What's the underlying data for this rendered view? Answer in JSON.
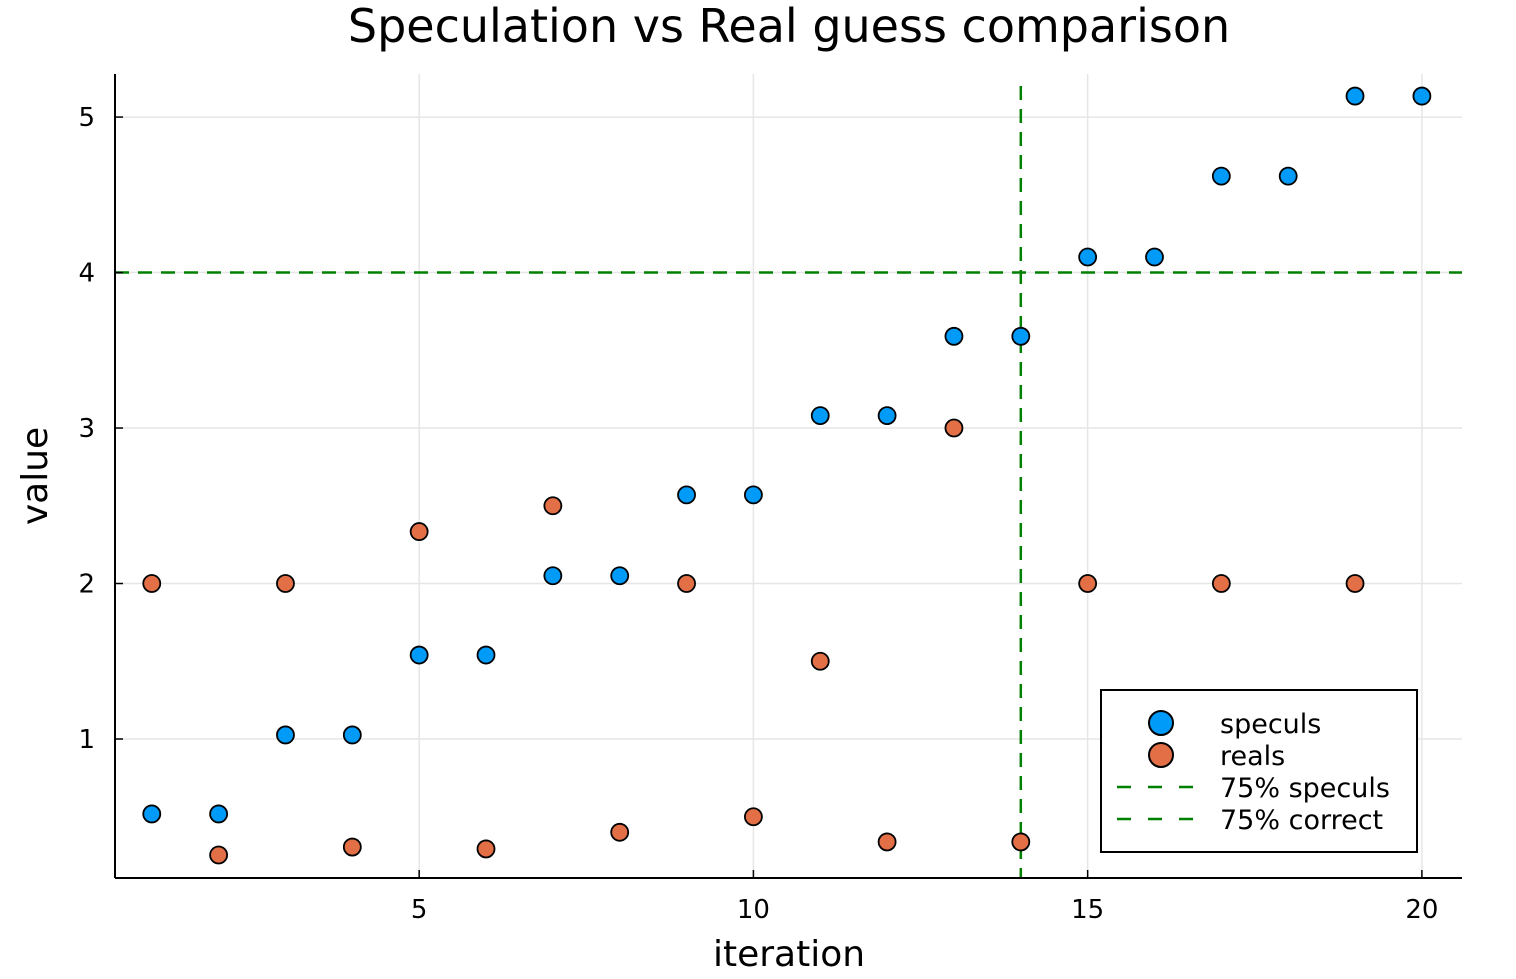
{
  "chart_data": {
    "type": "scatter",
    "title": "Speculation vs Real guess comparison",
    "xlabel": "iteration",
    "ylabel": "value",
    "xlim": [
      0.45,
      20.6
    ],
    "ylim": [
      0.106,
      5.277
    ],
    "xticks": [
      5,
      10,
      15,
      20
    ],
    "yticks": [
      1,
      2,
      3,
      4,
      5
    ],
    "grid": true,
    "legend_position": "bottom-right",
    "series": [
      {
        "name": "speculs",
        "kind": "scatter",
        "color": "#009af9",
        "x": [
          1,
          2,
          3,
          4,
          5,
          6,
          7,
          8,
          9,
          10,
          11,
          12,
          13,
          14,
          15,
          16,
          17,
          18,
          19,
          20
        ],
        "y": [
          0.518,
          0.518,
          1.026,
          1.026,
          1.54,
          1.54,
          2.05,
          2.05,
          2.57,
          2.57,
          3.08,
          3.08,
          3.59,
          3.59,
          4.1,
          4.1,
          4.62,
          4.62,
          5.135,
          5.135
        ]
      },
      {
        "name": "reals",
        "kind": "scatter",
        "color": "#e26f46",
        "x": [
          1,
          2,
          3,
          4,
          5,
          6,
          7,
          8,
          9,
          10,
          11,
          12,
          13,
          14,
          15,
          17,
          19
        ],
        "y": [
          2,
          0.254,
          2,
          0.305,
          2.334,
          0.293,
          2.5,
          0.4,
          2,
          0.5,
          1.5,
          0.338,
          3,
          0.338,
          2,
          2,
          2
        ]
      },
      {
        "name": "75% speculs",
        "kind": "vline",
        "color": "#008000",
        "x": 14
      },
      {
        "name": "75% correct",
        "kind": "hline",
        "color": "#008000",
        "y": 4
      }
    ]
  }
}
